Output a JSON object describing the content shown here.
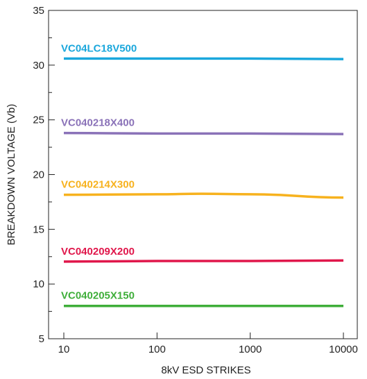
{
  "chart_data": {
    "type": "line",
    "xlabel": "8kV ESD STRIKES",
    "ylabel": "BREAKDOWN VOLTAGE (Vb)",
    "x_scale": "log",
    "xlim": [
      10,
      10000
    ],
    "ylim": [
      5,
      35
    ],
    "x_ticks": [
      10,
      100,
      1000,
      10000
    ],
    "x_tick_labels": [
      "10",
      "100",
      "1000",
      "10000"
    ],
    "y_ticks": [
      5,
      10,
      15,
      20,
      25,
      30,
      35
    ],
    "y_tick_labels": [
      "5",
      "10",
      "15",
      "20",
      "25",
      "30",
      "35"
    ],
    "y_minor_step": 2.5,
    "grid": false,
    "series": [
      {
        "name": "VC04LC18V500",
        "color": "#1aa7dc",
        "x": [
          10,
          100,
          1000,
          10000
        ],
        "y": [
          30.6,
          30.6,
          30.6,
          30.55
        ]
      },
      {
        "name": "VC040218X400",
        "color": "#8a72b8",
        "x": [
          10,
          100,
          1000,
          10000
        ],
        "y": [
          23.8,
          23.75,
          23.75,
          23.7
        ]
      },
      {
        "name": "VC040214X300",
        "color": "#f7b21e",
        "x": [
          10,
          100,
          300,
          1000,
          10000
        ],
        "y": [
          18.15,
          18.2,
          18.25,
          18.2,
          17.9
        ]
      },
      {
        "name": "VC040209X200",
        "color": "#e0174b",
        "x": [
          10,
          100,
          1000,
          10000
        ],
        "y": [
          12.05,
          12.1,
          12.1,
          12.15
        ]
      },
      {
        "name": "VC040205X150",
        "color": "#3fae3a",
        "x": [
          10,
          100,
          1000,
          10000
        ],
        "y": [
          8.0,
          8.0,
          8.0,
          8.0
        ]
      }
    ]
  }
}
